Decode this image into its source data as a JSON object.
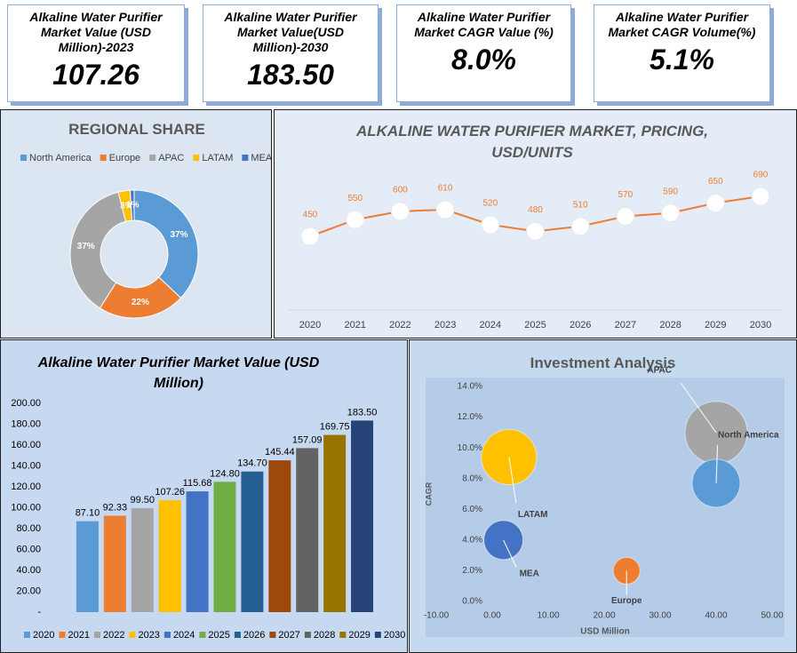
{
  "kpis": [
    {
      "title": "Alkaline Water Purifier Market Value (USD Million)-2023",
      "value": "107.26"
    },
    {
      "title": "Alkaline Water Purifier Market Value(USD Million)-2030",
      "value": "183.50"
    },
    {
      "title": "Alkaline Water Purifier Market CAGR  Value (%)",
      "value": "8.0%"
    },
    {
      "title": "Alkaline Water Purifier Market CAGR Volume(%)",
      "value": "5.1%"
    }
  ],
  "chart_data": [
    {
      "type": "pie",
      "title": "REGIONAL SHARE",
      "categories": [
        "North America",
        "Europe",
        "APAC",
        "LATAM",
        "MEA"
      ],
      "values": [
        37,
        22,
        37,
        3,
        1
      ],
      "value_labels": [
        "37%",
        "22%",
        "37%",
        "3%",
        "1%"
      ],
      "colors": [
        "#5b9bd5",
        "#ed7d31",
        "#a5a5a5",
        "#ffc000",
        "#4472c4"
      ],
      "legend": "top"
    },
    {
      "type": "line",
      "title": "ALKALINE WATER PURIFIER MARKET, PRICING, USD/UNITS",
      "categories": [
        "2020",
        "2021",
        "2022",
        "2023",
        "2024",
        "2025",
        "2026",
        "2027",
        "2028",
        "2029",
        "2030"
      ],
      "values": [
        450,
        550,
        600,
        610,
        520,
        480,
        510,
        570,
        590,
        650,
        690
      ],
      "color": "#ed7d31"
    },
    {
      "type": "bar",
      "title": "Alkaline Water Purifier Market Value (USD Million)",
      "categories": [
        "2020",
        "2021",
        "2022",
        "2023",
        "2024",
        "2025",
        "2026",
        "2027",
        "2028",
        "2029",
        "2030"
      ],
      "values": [
        87.1,
        92.33,
        99.5,
        107.26,
        115.68,
        124.8,
        134.7,
        145.44,
        157.09,
        169.75,
        183.5
      ],
      "value_labels": [
        "87.10",
        "92.33",
        "99.50",
        "107.26",
        "115.68",
        "124.80",
        "134.70",
        "145.44",
        "157.09",
        "169.75",
        "183.50"
      ],
      "colors": [
        "#5b9bd5",
        "#ed7d31",
        "#a5a5a5",
        "#ffc000",
        "#4472c4",
        "#70ad47",
        "#255e91",
        "#9e480e",
        "#636363",
        "#997300",
        "#264478"
      ],
      "ylim": [
        0,
        200
      ],
      "yticks": [
        {
          "value": 0,
          "label": "-"
        },
        {
          "value": 20,
          "label": "20.00"
        },
        {
          "value": 40,
          "label": "40.00"
        },
        {
          "value": 60,
          "label": "60.00"
        },
        {
          "value": 80,
          "label": "80.00"
        },
        {
          "value": 100,
          "label": "100.00"
        },
        {
          "value": 120,
          "label": "120.00"
        },
        {
          "value": 140,
          "label": "140.00"
        },
        {
          "value": 160,
          "label": "160.00"
        },
        {
          "value": 180,
          "label": "180.00"
        },
        {
          "value": 200,
          "label": "200.00"
        }
      ],
      "legend": "bottom"
    },
    {
      "type": "scatter",
      "title": "Investment Analysis",
      "x_label": "USD Million",
      "y_label": "CAGR",
      "xlim": [
        -10,
        50
      ],
      "xticks": [
        {
          "value": -10,
          "label": "-10.00"
        },
        {
          "value": 0,
          "label": "0.00"
        },
        {
          "value": 10,
          "label": "10.00"
        },
        {
          "value": 20,
          "label": "20.00"
        },
        {
          "value": 30,
          "label": "30.00"
        },
        {
          "value": 40,
          "label": "40.00"
        },
        {
          "value": 50,
          "label": "50.00"
        }
      ],
      "ylim": [
        0,
        14
      ],
      "yticks": [
        {
          "value": 0,
          "label": "0.0%"
        },
        {
          "value": 2,
          "label": "2.0%"
        },
        {
          "value": 4,
          "label": "4.0%"
        },
        {
          "value": 6,
          "label": "6.0%"
        },
        {
          "value": 8,
          "label": "8.0%"
        },
        {
          "value": 10,
          "label": "10.0%"
        },
        {
          "value": 12,
          "label": "12.0%"
        },
        {
          "value": 14,
          "label": "14.0%"
        }
      ],
      "series": [
        {
          "name": "APAC",
          "color": "#a5a5a5",
          "x": 40,
          "y": 11,
          "size": 35
        },
        {
          "name": "North America",
          "color": "#5b9bd5",
          "x": 40,
          "y": 7.7,
          "size": 27
        },
        {
          "name": "LATAM",
          "color": "#ffc000",
          "x": 3,
          "y": 9.4,
          "size": 31
        },
        {
          "name": "MEA",
          "color": "#4472c4",
          "x": 2,
          "y": 4,
          "size": 22
        },
        {
          "name": "Europe",
          "color": "#ed7d31",
          "x": 24,
          "y": 2,
          "size": 15
        }
      ]
    }
  ]
}
